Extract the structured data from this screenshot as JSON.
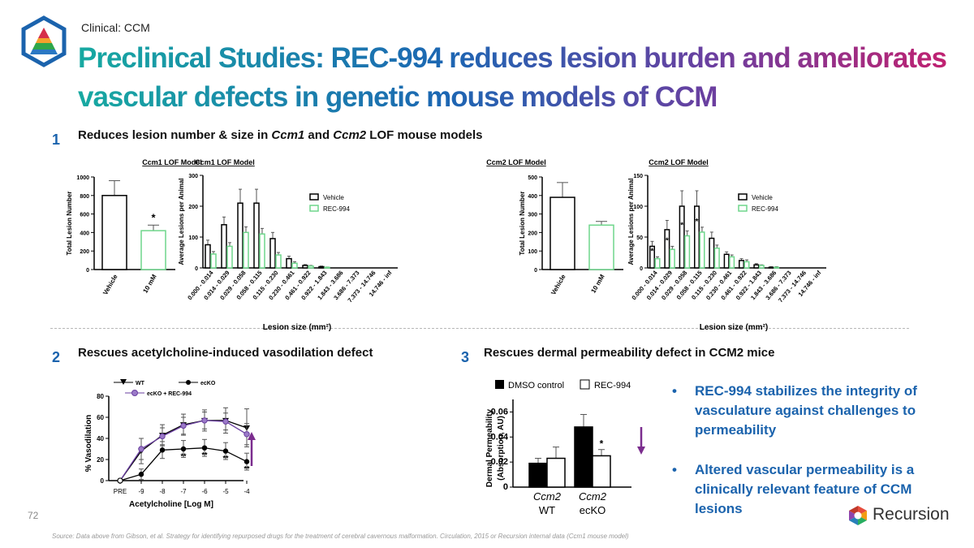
{
  "header": {
    "eyebrow": "Clinical: CCM",
    "title": "Preclinical Studies: REC-994 reduces lesion burden and ameliorates vascular defects in genetic mouse models of CCM"
  },
  "section1": {
    "number": "1",
    "text_a": "Reduces lesion number & size in ",
    "ccm1": "Ccm1",
    "text_b": " and ",
    "ccm2": "Ccm2",
    "text_c": " LOF mouse models"
  },
  "section2": {
    "number": "2",
    "text": "Rescues acetylcholine-induced vasodilation defect"
  },
  "section3": {
    "number": "3",
    "text": "Rescues dermal permeability defect in CCM2 mice"
  },
  "bullets": [
    "REC-994 stabilizes the integrity of vasculature against challenges to permeability",
    "Altered vascular permeability is a clinically relevant feature of CCM lesions"
  ],
  "footer": {
    "page_number": "72",
    "source": "Source: Data above from Gibson, et al. Strategy for identifying repurposed drugs for the treatment of cerebral cavernous malformation. Circulation, 2015 or Recursion internal data (Ccm1 mouse model)",
    "logo_text": "Recursion"
  },
  "colors": {
    "vehicle": "#000000",
    "rec994": "#6fd68c",
    "wt": "#000000",
    "eckorec": "#6a3fa0",
    "arrow": "#7b2d8e"
  },
  "chart_data": [
    {
      "id": "ccm1_total",
      "type": "bar",
      "group_title": "Ccm1 LOF Model",
      "categories": [
        "Vehicle",
        "10 mM"
      ],
      "values": [
        800,
        420
      ],
      "errors": [
        160,
        60
      ],
      "ylabel": "Total Lesion Number",
      "ylim": [
        0,
        1000
      ],
      "yticks": [
        "0",
        "200",
        "400",
        "600",
        "800",
        "1000"
      ],
      "significance": [
        "",
        "*"
      ]
    },
    {
      "id": "ccm1_size",
      "type": "bar",
      "categories": [
        "0.000 - 0.014",
        "0.014 - 0.029",
        "0.029 - 0.058",
        "0.058 - 0.115",
        "0.115 - 0.230",
        "0.230 - 0.461",
        "0.461 - 0.922",
        "0.922 - 1.843",
        "1.843 - 3.686",
        "3.686 - 7.373",
        "7.373 - 14.746",
        "14.746 - inf"
      ],
      "series": [
        {
          "name": "Vehicle",
          "values": [
            75,
            140,
            210,
            210,
            95,
            30,
            8,
            4,
            0,
            0,
            0,
            0
          ],
          "errors": [
            15,
            25,
            45,
            45,
            20,
            8,
            3,
            2,
            0,
            0,
            0,
            0
          ]
        },
        {
          "name": "REC-994",
          "values": [
            45,
            70,
            115,
            110,
            42,
            15,
            6,
            2,
            0,
            0,
            0,
            0
          ],
          "errors": [
            8,
            12,
            18,
            18,
            8,
            5,
            2,
            1,
            0,
            0,
            0,
            0
          ]
        }
      ],
      "ylabel": "Average Lesions per Animal",
      "xlabel": "Lesion size (mm²)",
      "ylim": [
        0,
        300
      ],
      "yticks": [
        "0",
        "100",
        "200",
        "300"
      ]
    },
    {
      "id": "ccm2_total",
      "type": "bar",
      "group_title": "Ccm2 LOF Model",
      "categories": [
        "Vehicle",
        "10 mM"
      ],
      "values": [
        390,
        240
      ],
      "errors": [
        80,
        20
      ],
      "ylabel": "Total Lesion Number",
      "ylim": [
        0,
        500
      ],
      "yticks": [
        "0",
        "100",
        "200",
        "300",
        "400",
        "500"
      ]
    },
    {
      "id": "ccm2_size",
      "type": "bar",
      "categories": [
        "0.000 - 0.014",
        "0.014 - 0.029",
        "0.029 - 0.058",
        "0.058 - 0.115",
        "0.115 - 0.230",
        "0.230 - 0.461",
        "0.461 - 0.922",
        "0.922 - 1.843",
        "1.843 - 3.686",
        "3.686 - 7.373",
        "7.373 - 14.746",
        "14.746 - inf"
      ],
      "series": [
        {
          "name": "Vehicle",
          "values": [
            35,
            62,
            100,
            100,
            48,
            22,
            12,
            5,
            1,
            0,
            0,
            0
          ],
          "errors": [
            8,
            15,
            25,
            25,
            10,
            4,
            3,
            2,
            1,
            0,
            0,
            0
          ]
        },
        {
          "name": "REC-994",
          "values": [
            15,
            30,
            52,
            58,
            32,
            18,
            10,
            4,
            1,
            0,
            0,
            0
          ],
          "errors": [
            3,
            5,
            8,
            8,
            5,
            3,
            3,
            1,
            1,
            0,
            0,
            0
          ]
        }
      ],
      "ylabel": "Average Lesions per Animal",
      "xlabel": "Lesion size (mm²)",
      "ylim": [
        0,
        150
      ],
      "yticks": [
        "0",
        "50",
        "100",
        "150"
      ],
      "significance": [
        "*",
        "*",
        "*",
        "*",
        "",
        "",
        "",
        "",
        "",
        "",
        "",
        ""
      ]
    },
    {
      "id": "vasodilation",
      "type": "line",
      "x": [
        "PRE",
        "-9",
        "-8",
        "-7",
        "-6",
        "-5",
        "-4"
      ],
      "series": [
        {
          "name": "WT",
          "values": [
            0,
            28,
            43,
            53,
            57,
            57,
            50
          ],
          "errors": [
            0,
            12,
            10,
            10,
            10,
            12,
            18
          ]
        },
        {
          "name": "ecKO",
          "values": [
            0,
            6,
            29,
            30,
            31,
            28,
            18
          ],
          "errors": [
            0,
            5,
            8,
            8,
            8,
            8,
            8
          ]
        },
        {
          "name": "ecKO + REC-994",
          "values": [
            0,
            30,
            42,
            52,
            57,
            56,
            44
          ],
          "errors": [
            0,
            10,
            8,
            8,
            8,
            8,
            10
          ]
        }
      ],
      "ylabel": "% Vasodilation",
      "xlabel": "Acetylcholine [Log M]",
      "ylim": [
        0,
        80
      ],
      "yticks": [
        "0",
        "20",
        "40",
        "60",
        "80"
      ],
      "significance": [
        "",
        "",
        "",
        "**",
        "**",
        "**",
        "**"
      ]
    },
    {
      "id": "permeability",
      "type": "bar",
      "categories": [
        "WT",
        "ecKO"
      ],
      "category_prefix": "Ccm2",
      "series": [
        {
          "name": "DMSO control",
          "values": [
            0.019,
            0.048
          ],
          "errors": [
            0.004,
            0.01
          ]
        },
        {
          "name": "REC-994",
          "values": [
            0.023,
            0.025
          ],
          "errors": [
            0.009,
            0.005
          ]
        }
      ],
      "ylabel": "Dermal Permeability (Absorption, AU)",
      "ylim": [
        0,
        0.07
      ],
      "yticks": [
        "0",
        "0.02",
        "0.04",
        "0.06"
      ],
      "significance": "*"
    }
  ]
}
